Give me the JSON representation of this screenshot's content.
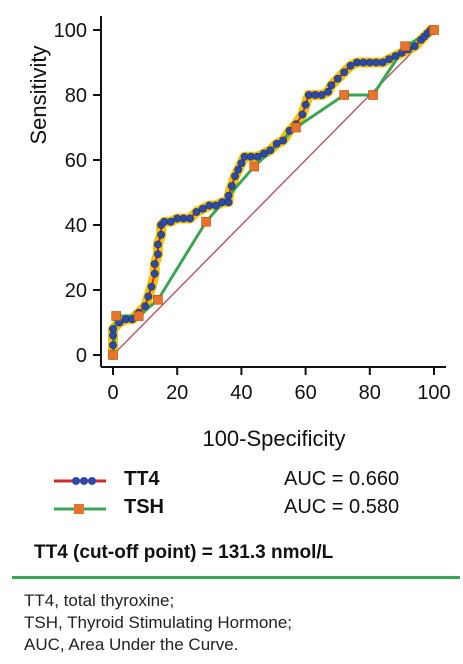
{
  "chart_data": {
    "type": "line",
    "xlabel": "100-Specificity",
    "ylabel": "Sensitivity",
    "xlim": [
      0,
      100
    ],
    "ylim": [
      0,
      100
    ],
    "x_ticks": [
      "0",
      "20",
      "40",
      "60",
      "80",
      "100"
    ],
    "y_ticks": [
      "0",
      "20",
      "40",
      "60",
      "80",
      "100"
    ],
    "grid": false,
    "legend_position": "below",
    "series": [
      {
        "name": "TT4",
        "auc_label": "AUC = 0.660",
        "line_color": "#d9262b",
        "marker_color": "#2e4aa8",
        "points": [
          [
            0,
            0
          ],
          [
            0,
            3
          ],
          [
            0,
            6
          ],
          [
            0,
            8
          ],
          [
            2,
            10
          ],
          [
            4,
            11
          ],
          [
            6,
            11
          ],
          [
            8,
            13
          ],
          [
            10,
            15
          ],
          [
            11,
            18
          ],
          [
            12,
            21
          ],
          [
            13,
            25
          ],
          [
            13,
            28
          ],
          [
            14,
            31
          ],
          [
            14,
            34
          ],
          [
            15,
            37
          ],
          [
            15,
            40
          ],
          [
            16,
            41
          ],
          [
            18,
            41
          ],
          [
            20,
            42
          ],
          [
            22,
            42
          ],
          [
            24,
            42
          ],
          [
            26,
            44
          ],
          [
            28,
            45
          ],
          [
            30,
            46
          ],
          [
            32,
            46
          ],
          [
            34,
            47
          ],
          [
            36,
            47
          ],
          [
            36,
            49
          ],
          [
            37,
            52
          ],
          [
            38,
            55
          ],
          [
            39,
            57
          ],
          [
            40,
            59
          ],
          [
            41,
            61
          ],
          [
            43,
            61
          ],
          [
            45,
            61
          ],
          [
            47,
            62
          ],
          [
            49,
            63
          ],
          [
            51,
            65
          ],
          [
            53,
            66
          ],
          [
            55,
            69
          ],
          [
            57,
            71
          ],
          [
            59,
            74
          ],
          [
            60,
            77
          ],
          [
            61,
            80
          ],
          [
            63,
            80
          ],
          [
            65,
            80
          ],
          [
            67,
            81
          ],
          [
            68,
            83
          ],
          [
            70,
            85
          ],
          [
            72,
            87
          ],
          [
            74,
            89
          ],
          [
            76,
            90
          ],
          [
            78,
            90
          ],
          [
            80,
            90
          ],
          [
            82,
            90
          ],
          [
            84,
            90
          ],
          [
            86,
            91
          ],
          [
            88,
            92
          ],
          [
            90,
            93
          ],
          [
            92,
            94
          ],
          [
            94,
            95
          ],
          [
            96,
            97
          ],
          [
            97,
            98
          ],
          [
            98,
            99
          ],
          [
            99,
            100
          ],
          [
            100,
            100
          ]
        ]
      },
      {
        "name": "TSH",
        "auc_label": "AUC = 0.580",
        "line_color": "#3aa655",
        "marker_color": "#e8742a",
        "points": [
          [
            0,
            0
          ],
          [
            1,
            12
          ],
          [
            8,
            12
          ],
          [
            14,
            17
          ],
          [
            29,
            41
          ],
          [
            44,
            58
          ],
          [
            57,
            70
          ],
          [
            72,
            80
          ],
          [
            81,
            80
          ],
          [
            91,
            95
          ],
          [
            100,
            100
          ]
        ]
      }
    ],
    "reference_line": {
      "from": [
        0,
        0
      ],
      "to": [
        100,
        100
      ],
      "color": "#b0585c"
    }
  },
  "annotation": {
    "cutoff": "TT4 (cut-off point) = 131.3 nmol/L"
  },
  "footnotes": [
    "TT4, total thyroxine;",
    "TSH, Thyroid Stimulating Hormone;",
    "AUC, Area Under the Curve."
  ],
  "colors": {
    "rule": "#3aa655",
    "tt4_highlight": "#f2c200"
  }
}
